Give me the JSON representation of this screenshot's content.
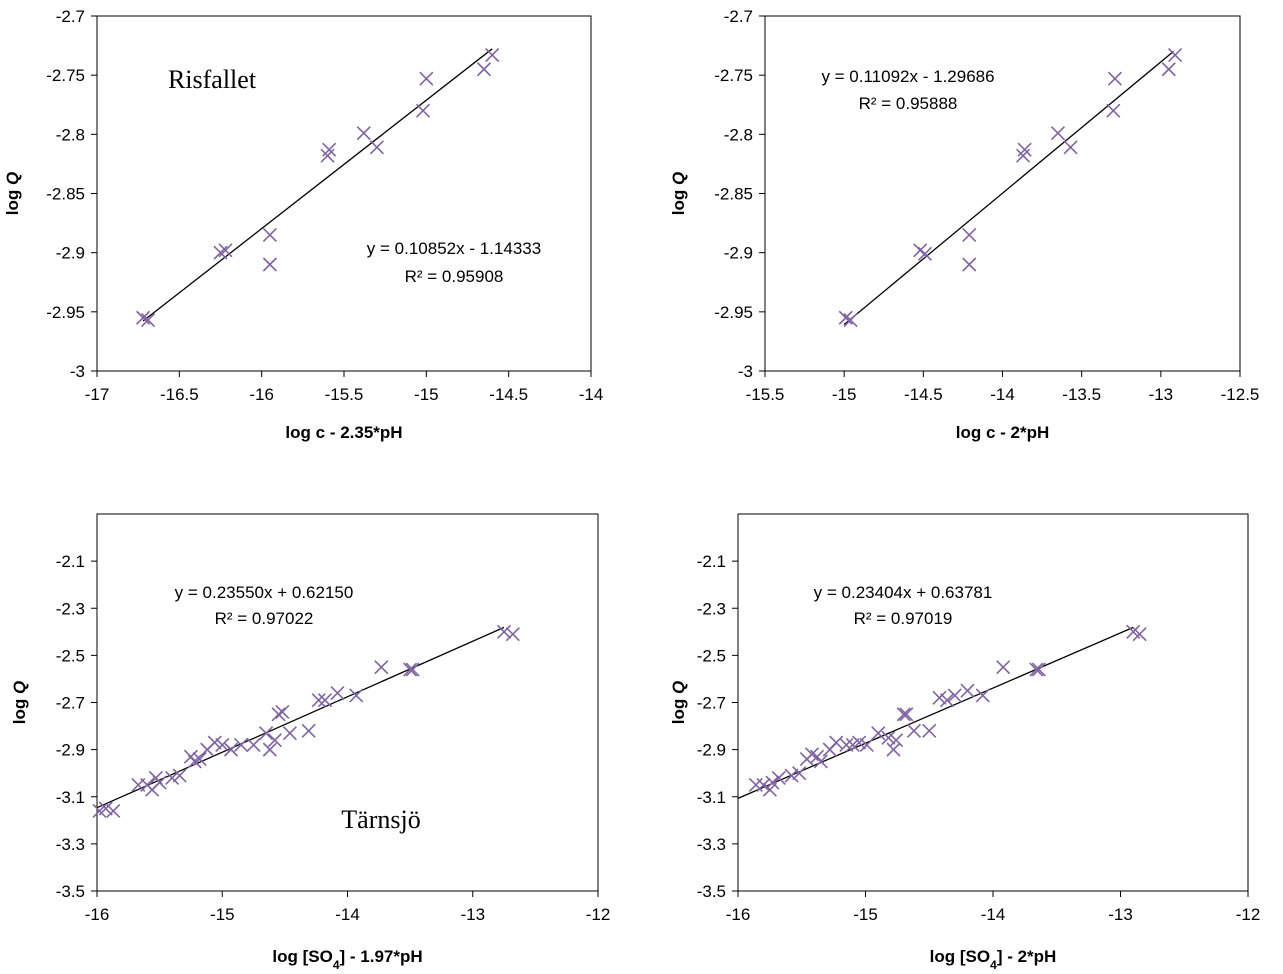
{
  "chart_data": [
    {
      "type": "scatter",
      "xlabel": "log c - 2.35*pH",
      "ylabel": "log Q",
      "xlim": [
        -17,
        -14
      ],
      "ylim": [
        -3,
        -2.7
      ],
      "xticks": [
        -17,
        -16.5,
        -16,
        -15.5,
        -15,
        -14.5,
        -14
      ],
      "yticks": [
        -3,
        -2.95,
        -2.9,
        -2.85,
        -2.8,
        -2.75,
        -2.7
      ],
      "site_label": "Risfallet",
      "equation": "y = 0.10852x - 1.14333",
      "r2": "R² = 0.95908",
      "trendline": {
        "slope": 0.10852,
        "intercept": -1.14333,
        "x_range": [
          -16.72,
          -14.6
        ]
      },
      "marker_color": "#8064a2",
      "x": [
        -16.72,
        -16.69,
        -16.25,
        -16.22,
        -15.95,
        -15.95,
        -15.6,
        -15.59,
        -15.38,
        -15.3,
        -15.02,
        -15.0,
        -14.65,
        -14.6
      ],
      "y": [
        -2.955,
        -2.957,
        -2.9,
        -2.898,
        -2.885,
        -2.91,
        -2.818,
        -2.813,
        -2.799,
        -2.811,
        -2.78,
        -2.753,
        -2.745,
        -2.733
      ]
    },
    {
      "type": "scatter",
      "xlabel": "log c - 2*pH",
      "ylabel": "log Q",
      "xlim": [
        -15.5,
        -12.5
      ],
      "ylim": [
        -3,
        -2.7
      ],
      "xticks": [
        -15.5,
        -15,
        -14.5,
        -14,
        -13.5,
        -13,
        -12.5
      ],
      "yticks": [
        -3,
        -2.95,
        -2.9,
        -2.85,
        -2.8,
        -2.75,
        -2.7
      ],
      "equation": "y = 0.11092x - 1.29686",
      "r2": "R² = 0.95888",
      "trendline": {
        "slope": 0.11092,
        "intercept": -1.29686,
        "x_range": [
          -15.0,
          -12.92
        ]
      },
      "marker_color": "#8064a2",
      "x": [
        -14.99,
        -14.96,
        -14.52,
        -14.49,
        -14.21,
        -14.21,
        -13.87,
        -13.86,
        -13.65,
        -13.57,
        -13.3,
        -13.29,
        -12.95,
        -12.91
      ],
      "y": [
        -2.955,
        -2.957,
        -2.898,
        -2.901,
        -2.885,
        -2.91,
        -2.818,
        -2.813,
        -2.799,
        -2.811,
        -2.78,
        -2.753,
        -2.745,
        -2.733
      ]
    },
    {
      "type": "scatter",
      "xlabel": "log [SO4] - 1.97*pH",
      "ylabel": "log Q",
      "xlim": [
        -16,
        -12
      ],
      "ylim": [
        -3.5,
        -1.9
      ],
      "xticks": [
        -16,
        -15,
        -14,
        -13,
        -12
      ],
      "yticks": [
        -3.5,
        -3.3,
        -3.1,
        -2.9,
        -2.7,
        -2.5,
        -2.3,
        -2.1
      ],
      "site_label": "Tärnsjö",
      "equation": "y = 0.23550x + 0.62150",
      "r2": "R² = 0.97022",
      "trendline": {
        "slope": 0.2355,
        "intercept": 0.6215,
        "x_range": [
          -16.0,
          -12.75
        ]
      },
      "marker_color": "#8064a2",
      "x": [
        -15.98,
        -15.93,
        -15.87,
        -15.67,
        -15.6,
        -15.56,
        -15.53,
        -15.5,
        -15.4,
        -15.34,
        -15.25,
        -15.22,
        -15.18,
        -15.12,
        -15.06,
        -15.0,
        -14.93,
        -14.85,
        -14.75,
        -14.65,
        -14.62,
        -14.58,
        -14.55,
        -14.52,
        -14.46,
        -14.31,
        -14.23,
        -14.18,
        -14.08,
        -13.93,
        -13.73,
        -13.5,
        -13.48,
        -12.75,
        -12.68
      ],
      "y": [
        -3.16,
        -3.15,
        -3.16,
        -3.05,
        -3.05,
        -3.07,
        -3.02,
        -3.04,
        -3.02,
        -3.01,
        -2.93,
        -2.95,
        -2.94,
        -2.9,
        -2.87,
        -2.88,
        -2.9,
        -2.88,
        -2.88,
        -2.83,
        -2.9,
        -2.86,
        -2.75,
        -2.74,
        -2.83,
        -2.82,
        -2.69,
        -2.69,
        -2.66,
        -2.67,
        -2.55,
        -2.56,
        -2.56,
        -2.4,
        -2.41
      ]
    },
    {
      "type": "scatter",
      "xlabel": "log [SO4] - 2*pH",
      "ylabel": "log Q",
      "xlim": [
        -16,
        -12
      ],
      "ylim": [
        -3.5,
        -1.9
      ],
      "xticks": [
        -16,
        -15,
        -14,
        -13,
        -12
      ],
      "yticks": [
        -3.5,
        -3.3,
        -3.1,
        -2.9,
        -2.7,
        -2.5,
        -2.3,
        -2.1
      ],
      "equation": "y = 0.23404x + 0.63781",
      "r2": "R² = 0.97019",
      "trendline": {
        "slope": 0.23404,
        "intercept": 0.63781,
        "x_range": [
          -16.0,
          -12.9
        ]
      },
      "marker_color": "#8064a2",
      "x": [
        -15.86,
        -15.8,
        -15.75,
        -15.73,
        -15.68,
        -15.58,
        -15.52,
        -15.46,
        -15.42,
        -15.38,
        -15.35,
        -15.28,
        -15.23,
        -15.15,
        -15.1,
        -15.05,
        -14.99,
        -14.9,
        -14.82,
        -14.78,
        -14.76,
        -14.7,
        -14.68,
        -14.62,
        -14.5,
        -14.42,
        -14.36,
        -14.3,
        -14.2,
        -14.08,
        -13.92,
        -13.66,
        -13.64,
        -12.9,
        -12.85
      ],
      "y": [
        -3.05,
        -3.05,
        -3.07,
        -3.04,
        -3.02,
        -3.01,
        -3.0,
        -2.94,
        -2.92,
        -2.93,
        -2.95,
        -2.9,
        -2.87,
        -2.88,
        -2.88,
        -2.87,
        -2.88,
        -2.83,
        -2.85,
        -2.9,
        -2.86,
        -2.75,
        -2.75,
        -2.82,
        -2.82,
        -2.68,
        -2.69,
        -2.67,
        -2.65,
        -2.67,
        -2.55,
        -2.56,
        -2.56,
        -2.4,
        -2.41
      ]
    }
  ]
}
